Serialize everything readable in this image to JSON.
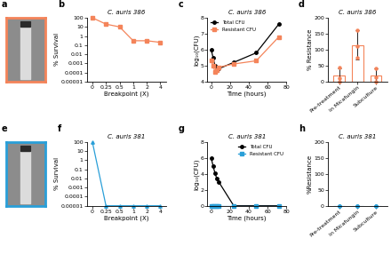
{
  "chart_data": [
    {
      "type": "image",
      "panel_label": "a",
      "color": "#f4845a"
    },
    {
      "type": "line",
      "panel_label": "b",
      "title": "C. auris 386",
      "x_label": "Breakpoint (X)",
      "y_label": "% Survival",
      "categories": [
        "0",
        "0.25",
        "0.5",
        "1",
        "2",
        "4"
      ],
      "values": [
        100,
        20,
        10,
        0.3,
        0.3,
        0.2
      ],
      "color": "#f4845a",
      "marker": "square",
      "log": "y",
      "ylim": [
        {
          "value": 1e-05,
          "label": "0.00001"
        },
        100
      ],
      "yticks": [
        {
          "value": 1e-05,
          "label": "0.00001"
        },
        0.0001,
        0.001,
        0.01,
        0.1,
        1,
        10,
        100
      ]
    },
    {
      "type": "line",
      "panel_label": "c",
      "title": "C. auris 386",
      "x_label": "Time (hours)",
      "y_label": "log₁₀(CFU)",
      "x": [
        0,
        2,
        4,
        6,
        8,
        24,
        48,
        72
      ],
      "series": [
        {
          "name": "Total CFU",
          "color": "#000000",
          "marker": "circle",
          "values": [
            6.0,
            5.5,
            5.0,
            4.7,
            4.8,
            5.2,
            5.8,
            7.6
          ]
        },
        {
          "name": "Resistant CFU",
          "color": "#f4845a",
          "marker": "square",
          "values": [
            5.3,
            5.0,
            4.6,
            4.7,
            4.9,
            5.1,
            5.3,
            6.8
          ]
        }
      ],
      "xlim": [
        -4,
        80
      ],
      "xticks": [
        0,
        20,
        40,
        60,
        80
      ],
      "ylim": [
        4,
        8
      ],
      "yticks": [
        4,
        5,
        6,
        7,
        8
      ],
      "legend": "upper left"
    },
    {
      "type": "bar",
      "panel_label": "d",
      "title": "C. auris 386",
      "y_label": "% Resistance",
      "categories": [
        "Pre-treatment",
        "In Micafungin",
        "Subculture"
      ],
      "values": [
        20,
        115,
        20
      ],
      "errors": [
        22,
        45,
        20
      ],
      "points": [
        [
          0,
          10,
          45
        ],
        [
          75,
          110,
          160
        ],
        [
          0,
          12,
          42
        ]
      ],
      "color": "#f4845a",
      "ylim": [
        0,
        200
      ],
      "yticks": [
        0,
        50,
        100,
        150,
        200
      ]
    },
    {
      "type": "image",
      "panel_label": "e",
      "color": "#2a9fd8"
    },
    {
      "type": "line",
      "panel_label": "f",
      "title": "C. auris 381",
      "x_label": "Breakpoint (X)",
      "y_label": "% Survival",
      "categories": [
        "0",
        "0.25",
        "0.5",
        "1",
        "2",
        "4"
      ],
      "values": [
        100,
        1e-05,
        1e-05,
        1e-05,
        1e-05,
        1e-05
      ],
      "color": "#2a9fd8",
      "marker": "triangle",
      "log": "y",
      "ylim": [
        {
          "value": 1e-05,
          "label": "0.00001"
        },
        100
      ],
      "yticks": [
        {
          "value": 1e-05,
          "label": "0.00001"
        },
        0.0001,
        0.001,
        0.01,
        0.1,
        1,
        10,
        100
      ]
    },
    {
      "type": "line",
      "panel_label": "g",
      "title": "C. auris 381",
      "x_label": "Time (hours)",
      "y_label": "log₁₀(CFU)",
      "x": [
        0,
        2,
        4,
        6,
        8,
        24,
        48,
        72
      ],
      "series": [
        {
          "name": "Total CFU",
          "color": "#000000",
          "marker": "circle",
          "values": [
            6.0,
            5.0,
            4.1,
            3.4,
            3.0,
            0,
            0,
            0
          ]
        },
        {
          "name": "Resistant CFU",
          "color": "#2a9fd8",
          "marker": "square",
          "values": [
            0,
            0,
            0,
            0,
            0,
            0,
            0,
            0
          ]
        }
      ],
      "xlim": [
        -4,
        80
      ],
      "xticks": [
        0,
        20,
        40,
        60,
        80
      ],
      "ylim": [
        0,
        8
      ],
      "yticks": [
        0,
        2,
        4,
        6,
        8
      ],
      "legend": "upper right"
    },
    {
      "type": "bar",
      "panel_label": "h",
      "title": "C. auris 381",
      "y_label": "%Resistance",
      "categories": [
        "Pre-treatment",
        "In Micafungin",
        "Subculture"
      ],
      "values": [
        0,
        0,
        0
      ],
      "errors": [
        0,
        0,
        0
      ],
      "points": [
        [
          0,
          0,
          0
        ],
        [
          0,
          0,
          0
        ],
        [
          0,
          0,
          0
        ]
      ],
      "color": "#2a9fd8",
      "ylim": [
        0,
        200
      ],
      "yticks": [
        0,
        50,
        100,
        150,
        200
      ]
    }
  ]
}
